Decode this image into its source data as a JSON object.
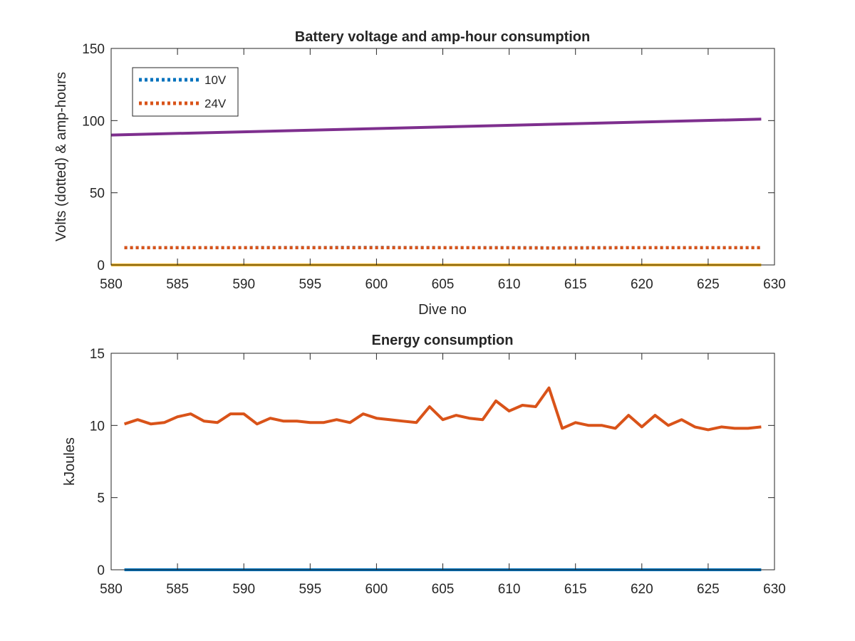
{
  "chart_data": [
    {
      "type": "line",
      "title": "Battery voltage and amp-hour consumption",
      "xlabel": "Dive no",
      "ylabel": "Volts (dotted) & amp-hours",
      "xlim": [
        580,
        630
      ],
      "ylim": [
        0,
        150
      ],
      "xticks": [
        "580",
        "585",
        "590",
        "595",
        "600",
        "605",
        "610",
        "615",
        "620",
        "625",
        "630"
      ],
      "yticks": [
        "0",
        "50",
        "100",
        "150"
      ],
      "legend_position": "top-left",
      "series": [
        {
          "name": "10V",
          "style": "dotted",
          "color": "#0072BD",
          "x": [
            581,
            590,
            600,
            605,
            610,
            613,
            620,
            629
          ],
          "y": [
            12,
            12,
            12.1,
            12,
            12,
            11.8,
            12,
            12
          ]
        },
        {
          "name": "24V",
          "style": "dotted",
          "color": "#D95319",
          "x": [
            581,
            590,
            600,
            605,
            610,
            613,
            620,
            629
          ],
          "y": [
            12,
            12,
            12,
            12,
            11.9,
            11.8,
            12,
            12
          ]
        },
        {
          "style": "solid",
          "color": "#7E2F8E",
          "x": [
            580,
            629
          ],
          "y": [
            90,
            101
          ]
        },
        {
          "style": "solid",
          "color": "#EDB120",
          "x": [
            580,
            629
          ],
          "y": [
            0,
            0
          ]
        }
      ]
    },
    {
      "type": "line",
      "title": "Energy consumption",
      "xlabel": "",
      "ylabel": "kJoules",
      "xlim": [
        580,
        630
      ],
      "ylim": [
        0,
        15
      ],
      "xticks": [
        "580",
        "585",
        "590",
        "595",
        "600",
        "605",
        "610",
        "615",
        "620",
        "625",
        "630"
      ],
      "yticks": [
        "0",
        "5",
        "10",
        "15"
      ],
      "series": [
        {
          "style": "solid",
          "color": "#D95319",
          "x": [
            581,
            582,
            583,
            584,
            585,
            586,
            587,
            588,
            589,
            590,
            591,
            592,
            593,
            594,
            595,
            596,
            597,
            598,
            599,
            600,
            601,
            602,
            603,
            604,
            605,
            606,
            607,
            608,
            609,
            610,
            611,
            612,
            613,
            614,
            615,
            616,
            617,
            618,
            619,
            620,
            621,
            622,
            623,
            624,
            625,
            626,
            627,
            628,
            629
          ],
          "y": [
            10.1,
            10.4,
            10.1,
            10.2,
            10.6,
            10.8,
            10.3,
            10.2,
            10.8,
            10.8,
            10.1,
            10.5,
            10.3,
            10.3,
            10.2,
            10.2,
            10.4,
            10.2,
            10.8,
            10.5,
            10.4,
            10.3,
            10.2,
            11.3,
            10.4,
            10.7,
            10.5,
            10.4,
            11.7,
            11.0,
            11.4,
            11.3,
            12.6,
            9.8,
            10.2,
            10.0,
            10.0,
            9.8,
            10.7,
            9.9,
            10.7,
            10.0,
            10.4,
            9.9,
            9.7,
            9.9,
            9.8,
            9.8,
            9.9
          ]
        },
        {
          "style": "solid",
          "color": "#0072BD",
          "x": [
            581,
            629
          ],
          "y": [
            0,
            0
          ]
        }
      ]
    }
  ]
}
